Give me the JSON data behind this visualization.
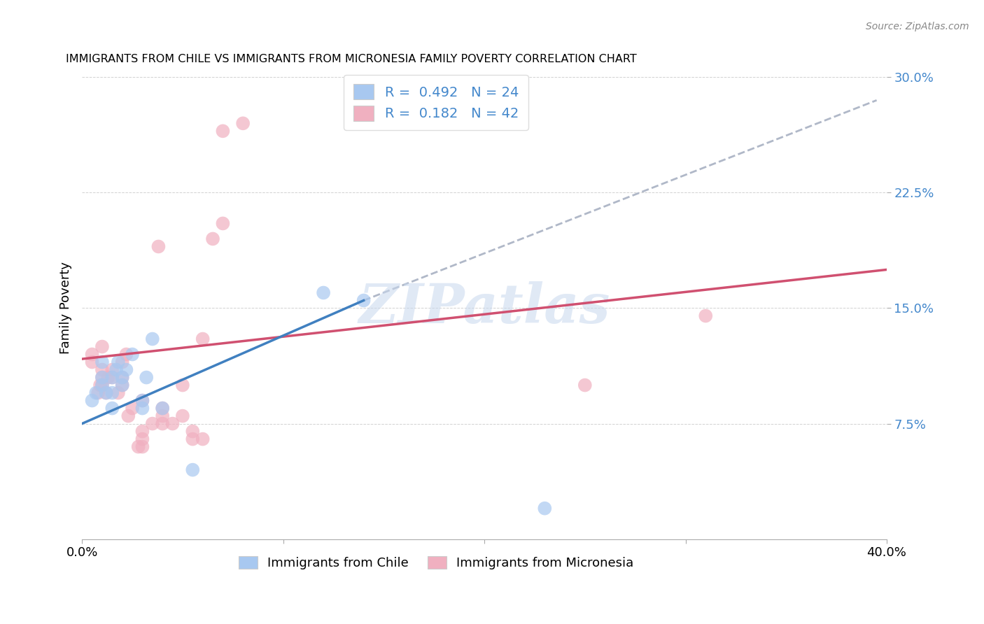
{
  "title": "IMMIGRANTS FROM CHILE VS IMMIGRANTS FROM MICRONESIA FAMILY POVERTY CORRELATION CHART",
  "source": "Source: ZipAtlas.com",
  "ylabel": "Family Poverty",
  "xlim": [
    0.0,
    0.4
  ],
  "ylim": [
    0.0,
    0.3
  ],
  "yticks": [
    0.075,
    0.15,
    0.225,
    0.3
  ],
  "ytick_labels": [
    "7.5%",
    "15.0%",
    "22.5%",
    "30.0%"
  ],
  "xticks": [
    0.0,
    0.1,
    0.2,
    0.3,
    0.4
  ],
  "xtick_labels": [
    "0.0%",
    "",
    "",
    "",
    "40.0%"
  ],
  "legend_R1": "0.492",
  "legend_N1": "24",
  "legend_R2": "0.182",
  "legend_N2": "42",
  "blue_color": "#a8c8f0",
  "pink_color": "#f0b0c0",
  "blue_line_color": "#4080c0",
  "pink_line_color": "#d05070",
  "dashed_line_color": "#b0b8c8",
  "watermark": "ZIPatlas",
  "chile_points_x": [
    0.005,
    0.007,
    0.01,
    0.01,
    0.01,
    0.012,
    0.015,
    0.015,
    0.015,
    0.017,
    0.018,
    0.02,
    0.02,
    0.022,
    0.025,
    0.03,
    0.03,
    0.032,
    0.035,
    0.04,
    0.055,
    0.12,
    0.14,
    0.23
  ],
  "chile_points_y": [
    0.09,
    0.095,
    0.1,
    0.105,
    0.115,
    0.095,
    0.085,
    0.095,
    0.105,
    0.11,
    0.115,
    0.1,
    0.105,
    0.11,
    0.12,
    0.085,
    0.09,
    0.105,
    0.13,
    0.085,
    0.045,
    0.16,
    0.155,
    0.02
  ],
  "micronesia_points_x": [
    0.005,
    0.005,
    0.008,
    0.009,
    0.01,
    0.01,
    0.01,
    0.01,
    0.012,
    0.013,
    0.015,
    0.015,
    0.018,
    0.02,
    0.02,
    0.02,
    0.022,
    0.023,
    0.025,
    0.028,
    0.03,
    0.03,
    0.03,
    0.03,
    0.035,
    0.038,
    0.04,
    0.04,
    0.04,
    0.045,
    0.05,
    0.055,
    0.055,
    0.06,
    0.06,
    0.065,
    0.07,
    0.07,
    0.08,
    0.25,
    0.31,
    0.05
  ],
  "micronesia_points_y": [
    0.12,
    0.115,
    0.095,
    0.1,
    0.1,
    0.105,
    0.11,
    0.125,
    0.095,
    0.105,
    0.105,
    0.11,
    0.095,
    0.1,
    0.105,
    0.115,
    0.12,
    0.08,
    0.085,
    0.06,
    0.06,
    0.065,
    0.07,
    0.09,
    0.075,
    0.19,
    0.075,
    0.08,
    0.085,
    0.075,
    0.08,
    0.065,
    0.07,
    0.065,
    0.13,
    0.195,
    0.205,
    0.265,
    0.27,
    0.1,
    0.145,
    0.1
  ],
  "chile_line_x": [
    0.0,
    0.14
  ],
  "chile_line_y": [
    0.075,
    0.155
  ],
  "micronesia_line_x": [
    0.0,
    0.4
  ],
  "micronesia_line_y": [
    0.117,
    0.175
  ],
  "dashed_line_x": [
    0.14,
    0.395
  ],
  "dashed_line_y": [
    0.155,
    0.285
  ]
}
